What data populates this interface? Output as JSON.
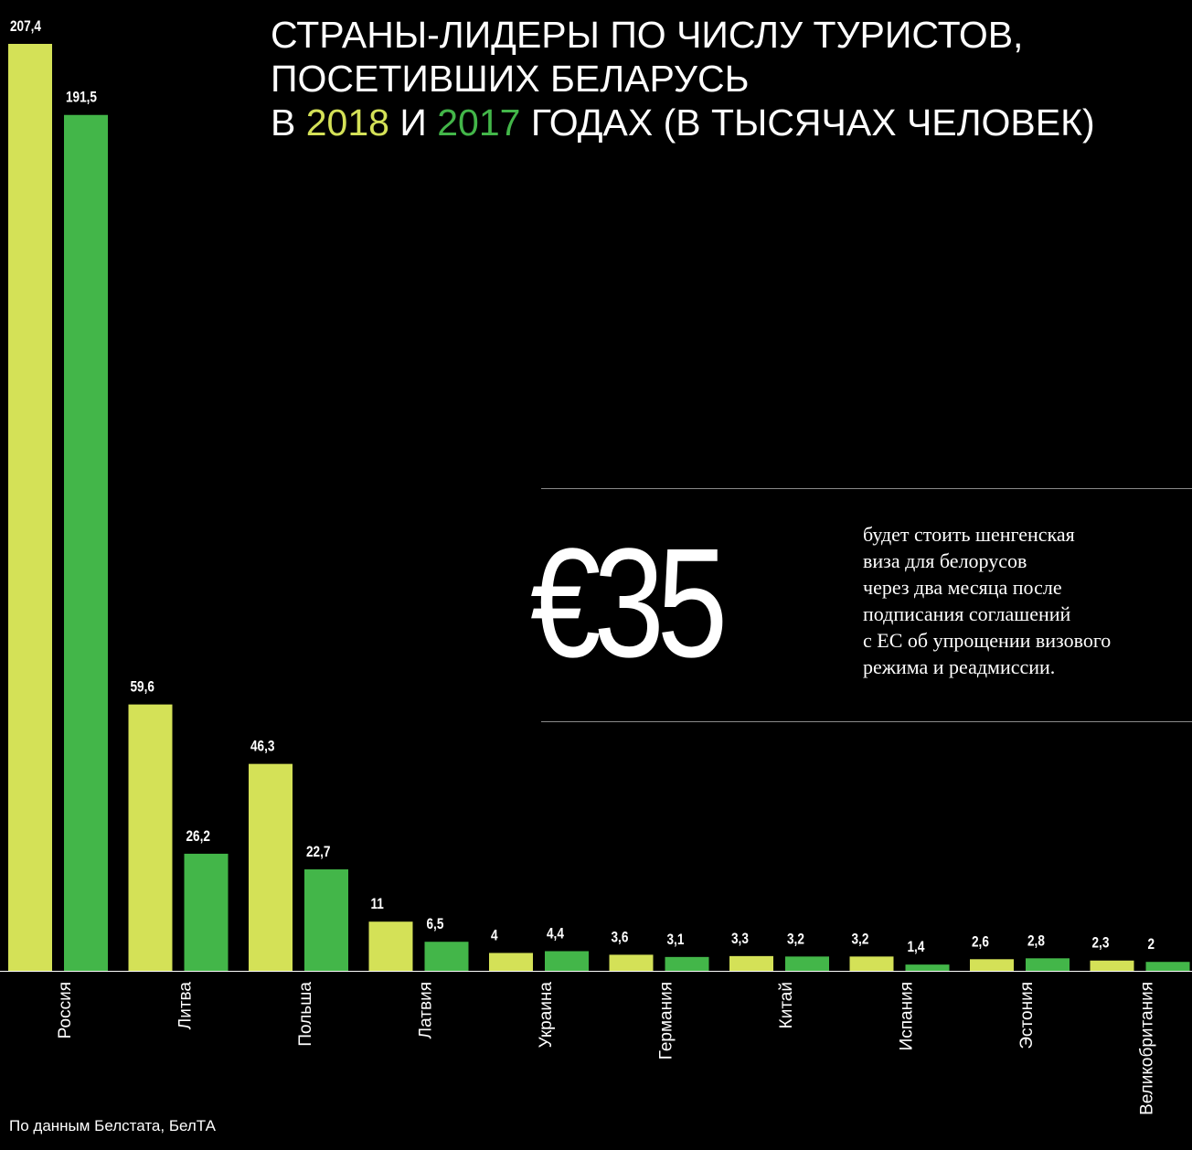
{
  "title": {
    "line1": "СТРАНЫ-ЛИДЕРЫ ПО ЧИСЛУ ТУРИСТОВ,",
    "line2": "ПОСЕТИВШИХ БЕЛАРУСЬ",
    "line3_prefix": "В ",
    "year_2018": "2018",
    "line3_mid": " И ",
    "year_2017": "2017",
    "line3_suffix": " ГОДАХ (В ТЫСЯЧАХ ЧЕЛОВЕК)"
  },
  "callout": {
    "price": "€35",
    "lines": [
      "будет стоить шенгенская",
      "виза для белорусов",
      "через два месяца после",
      "подписания соглашений",
      "с ЕС об упрощении визового",
      "режима и реадмиссии."
    ]
  },
  "source": "По данным Белстата, БелТА",
  "colors": {
    "background": "#000000",
    "series_2018": "#d4e157",
    "series_2017": "#43b649",
    "text": "#ffffff"
  },
  "chart_data": {
    "type": "bar",
    "title": "СТРАНЫ-ЛИДЕРЫ ПО ЧИСЛУ ТУРИСТОВ, ПОСЕТИВШИХ БЕЛАРУСЬ В 2018 И 2017 ГОДАХ (В ТЫСЯЧАХ ЧЕЛОВЕК)",
    "categories": [
      "Россия",
      "Литва",
      "Польша",
      "Латвия",
      "Украина",
      "Германия",
      "Китай",
      "Испания",
      "Эстония",
      "Великобритания"
    ],
    "series": [
      {
        "name": "2018",
        "values": [
          207.4,
          59.6,
          46.3,
          11,
          4,
          3.6,
          3.3,
          3.2,
          2.6,
          2.3
        ],
        "labels": [
          "207,4",
          "59,6",
          "46,3",
          "11",
          "4",
          "3,6",
          "3,3",
          "3,2",
          "2,6",
          "2,3"
        ]
      },
      {
        "name": "2017",
        "values": [
          191.5,
          26.2,
          22.7,
          6.5,
          4.4,
          3.1,
          3.2,
          1.4,
          2.8,
          2
        ],
        "labels": [
          "191,5",
          "26,2",
          "22,7",
          "6,5",
          "4,4",
          "3,1",
          "3,2",
          "1,4",
          "2,8",
          "2"
        ]
      }
    ],
    "xlabel": "",
    "ylabel": "",
    "ylim": [
      0,
      207.4
    ],
    "grid": false,
    "legend": "title"
  }
}
